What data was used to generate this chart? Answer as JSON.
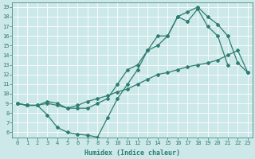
{
  "line1_x": [
    0,
    1,
    2,
    3,
    4,
    5,
    6,
    7,
    8,
    9,
    10,
    11,
    12,
    13,
    14,
    15,
    16,
    17,
    18,
    19,
    20,
    21,
    22,
    23
  ],
  "line1_y": [
    9,
    8.8,
    8.8,
    9,
    8.8,
    8.5,
    8.5,
    8.5,
    9.0,
    9.5,
    11.0,
    12.5,
    13.0,
    14.5,
    16.0,
    16.0,
    18.0,
    18.5,
    19.0,
    18.0,
    17.2,
    16.0,
    13.2,
    12.2
  ],
  "line2_x": [
    0,
    1,
    2,
    3,
    4,
    5,
    6,
    7,
    8,
    9,
    10,
    11,
    12,
    13,
    14,
    15,
    16,
    17,
    18,
    19,
    20,
    21,
    22,
    23
  ],
  "line2_y": [
    9,
    8.8,
    8.8,
    9.2,
    9.0,
    8.5,
    8.8,
    9.2,
    9.5,
    9.8,
    10.2,
    10.5,
    11.0,
    11.5,
    12.0,
    12.2,
    12.5,
    12.8,
    13.0,
    13.2,
    13.5,
    14.0,
    14.5,
    12.2
  ],
  "line3_x": [
    0,
    1,
    2,
    3,
    4,
    5,
    6,
    7,
    8,
    9,
    10,
    11,
    12,
    13,
    14,
    15,
    16,
    17,
    18,
    19,
    20,
    21
  ],
  "line3_y": [
    9,
    8.8,
    8.8,
    7.8,
    6.5,
    6.0,
    5.8,
    5.7,
    5.5,
    7.5,
    9.5,
    11.0,
    12.5,
    14.5,
    15.0,
    16.0,
    18.0,
    17.5,
    18.8,
    17.0,
    16.0,
    13.0
  ],
  "color": "#2e7d72",
  "bg_color": "#cce8e8",
  "grid_color": "#ffffff",
  "xlabel": "Humidex (Indice chaleur)",
  "xlim": [
    -0.5,
    23.5
  ],
  "ylim": [
    5.5,
    19.5
  ],
  "xticks": [
    0,
    1,
    2,
    3,
    4,
    5,
    6,
    7,
    8,
    9,
    10,
    11,
    12,
    13,
    14,
    15,
    16,
    17,
    18,
    19,
    20,
    21,
    22,
    23
  ],
  "yticks": [
    6,
    7,
    8,
    9,
    10,
    11,
    12,
    13,
    14,
    15,
    16,
    17,
    18,
    19
  ],
  "marker": "D",
  "markersize": 2,
  "linewidth": 0.9,
  "tick_fontsize": 5,
  "xlabel_fontsize": 6
}
